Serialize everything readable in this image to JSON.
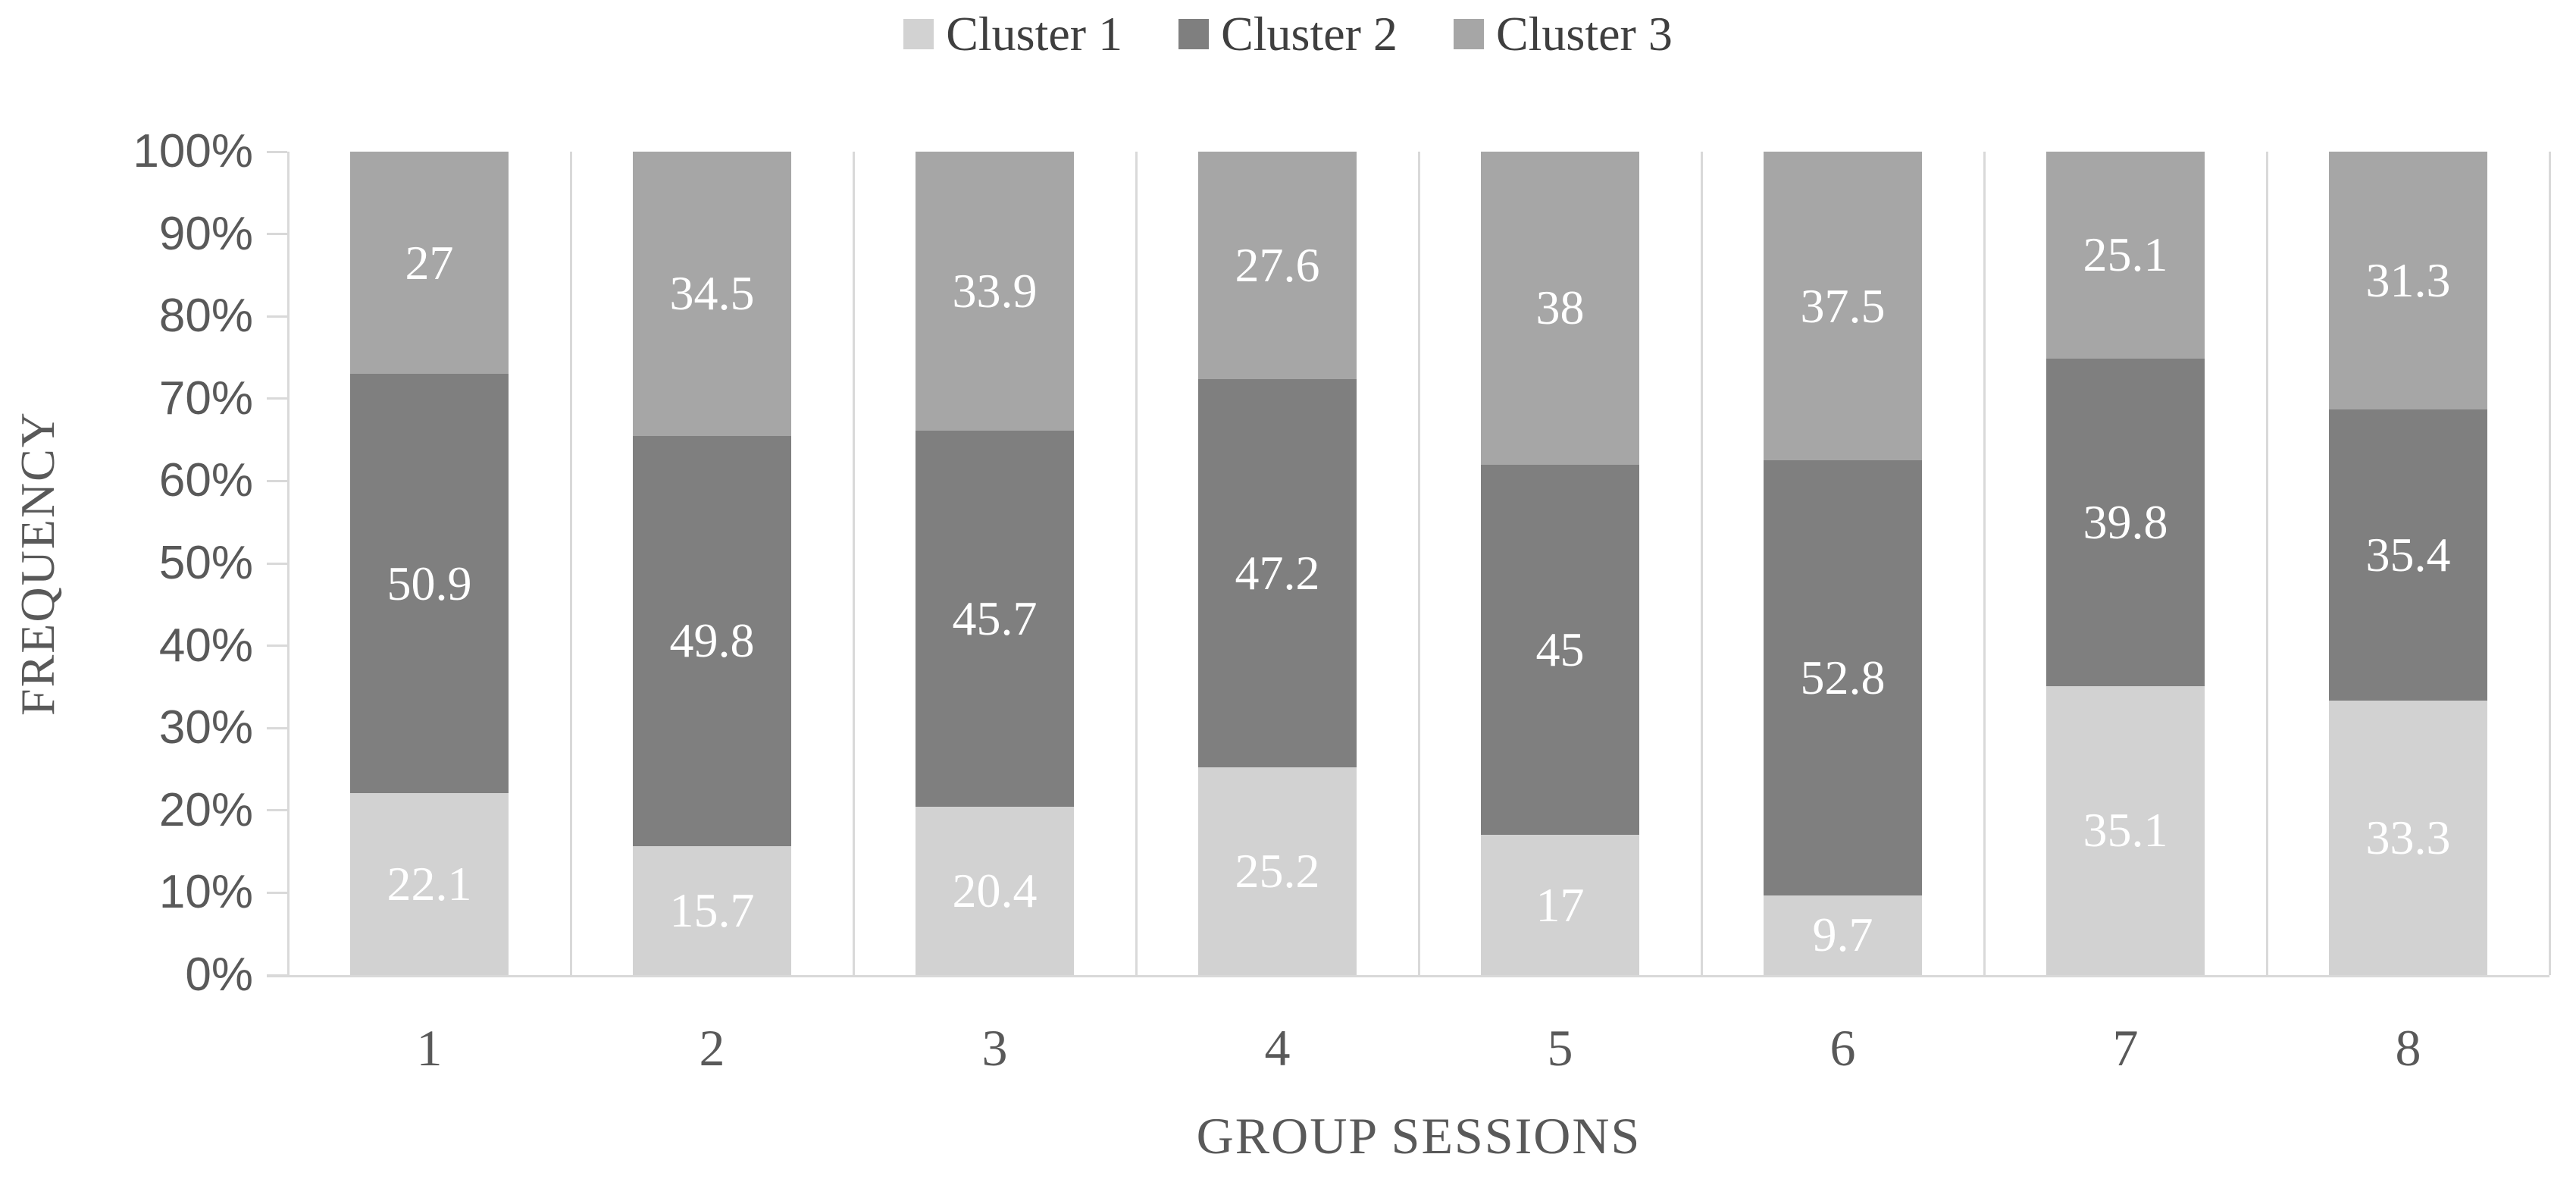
{
  "chart_data": {
    "type": "bar",
    "stacked": true,
    "normalized_percent": true,
    "xlabel": "GROUP SESSIONS",
    "ylabel": "FREQUENCY",
    "categories": [
      "1",
      "2",
      "3",
      "4",
      "5",
      "6",
      "7",
      "8"
    ],
    "series": [
      {
        "name": "Cluster 1",
        "color": "#d2d2d2",
        "values": [
          22.1,
          15.7,
          20.4,
          25.2,
          17,
          9.7,
          35.1,
          33.3
        ],
        "labels": [
          "22.1",
          "15.7",
          "20.4",
          "25.2",
          "17",
          "9.7",
          "35.1",
          "33.3"
        ]
      },
      {
        "name": "Cluster 2",
        "color": "#7f7f7f",
        "values": [
          50.9,
          49.8,
          45.7,
          47.2,
          45,
          52.8,
          39.8,
          35.4
        ],
        "labels": [
          "50.9",
          "49.8",
          "45.7",
          "47.2",
          "45",
          "52.8",
          "39.8",
          "35.4"
        ]
      },
      {
        "name": "Cluster 3",
        "color": "#a6a6a6",
        "values": [
          27,
          34.5,
          33.9,
          27.6,
          38,
          37.5,
          25.1,
          31.3
        ],
        "labels": [
          "27",
          "34.5",
          "33.9",
          "27.6",
          "38",
          "37.5",
          "25.1",
          "31.3"
        ]
      }
    ],
    "y_ticks": [
      "100%",
      "90%",
      "80%",
      "70%",
      "60%",
      "50%",
      "40%",
      "30%",
      "20%",
      "10%",
      "0%"
    ],
    "ylim": [
      0,
      100
    ],
    "legend_position": "top",
    "gridlines": "none",
    "category_separators": true,
    "colors": {
      "axis_line": "#d9d9d9",
      "tick_label_text": "#595959",
      "axis_title_text": "#595959",
      "legend_text": "#3f3f3f",
      "data_label_text": "#ffffff",
      "background": "#ffffff"
    }
  }
}
